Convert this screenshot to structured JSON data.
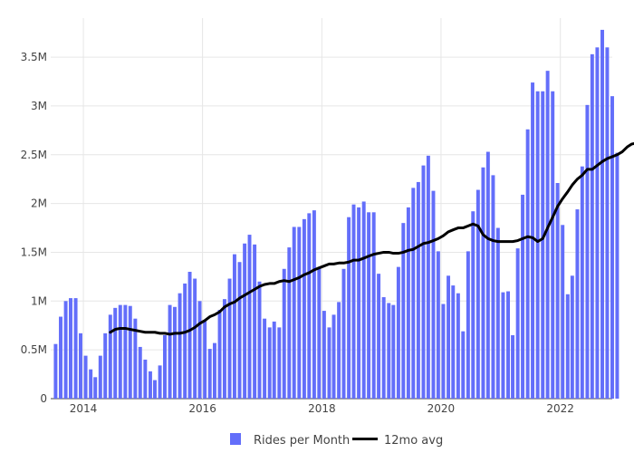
{
  "chart_data": {
    "type": "bar",
    "title": "",
    "xlabel": "",
    "ylabel": "",
    "x_start": "2013-07",
    "x_range": [
      "2013-06-15",
      "2022-11-15"
    ],
    "ylim": [
      0,
      3900000
    ],
    "grid": true,
    "legend_placement": "bottom-center",
    "y_ticks": [
      0,
      500000,
      1000000,
      1500000,
      2000000,
      2500000,
      3000000,
      3500000
    ],
    "y_tick_labels": [
      "0",
      "0.5M",
      "1M",
      "1.5M",
      "2M",
      "2.5M",
      "3M",
      "3.5M"
    ],
    "x_ticks": [
      "2014-01-01",
      "2016-01-01",
      "2018-01-01",
      "2020-01-01",
      "2022-01-01"
    ],
    "x_tick_labels": [
      "2014",
      "2016",
      "2018",
      "2020",
      "2022"
    ],
    "series": [
      {
        "name": "Rides per Month",
        "type": "bar",
        "color": "#636efa",
        "values": [
          560000,
          840000,
          1000000,
          1030000,
          1030000,
          670000,
          440000,
          300000,
          220000,
          440000,
          670000,
          860000,
          930000,
          960000,
          960000,
          950000,
          820000,
          530000,
          400000,
          280000,
          190000,
          340000,
          650000,
          960000,
          940000,
          1080000,
          1180000,
          1300000,
          1230000,
          1000000,
          800000,
          510000,
          570000,
          910000,
          1020000,
          1230000,
          1480000,
          1400000,
          1590000,
          1680000,
          1580000,
          1200000,
          820000,
          730000,
          790000,
          730000,
          1330000,
          1550000,
          1760000,
          1760000,
          1840000,
          1900000,
          1930000,
          1340000,
          900000,
          730000,
          860000,
          990000,
          1330000,
          1860000,
          1990000,
          1960000,
          2020000,
          1910000,
          1910000,
          1280000,
          1040000,
          980000,
          960000,
          1350000,
          1800000,
          1960000,
          2160000,
          2220000,
          2390000,
          2490000,
          2130000,
          1510000,
          970000,
          1260000,
          1160000,
          1080000,
          690000,
          1510000,
          1920000,
          2140000,
          2370000,
          2530000,
          2290000,
          1750000,
          1090000,
          1100000,
          650000,
          1540000,
          2090000,
          2760000,
          3240000,
          3150000,
          3150000,
          3360000,
          3150000,
          2210000,
          1780000,
          1070000,
          1260000,
          1940000,
          2380000,
          3010000,
          3530000,
          3600000,
          3780000,
          3600000,
          3100000,
          2520000
        ]
      },
      {
        "name": "12mo avg",
        "type": "line",
        "color": "#000000",
        "start": "2014-06",
        "values": [
          680000,
          710000,
          720000,
          720000,
          710000,
          700000,
          690000,
          680000,
          680000,
          680000,
          670000,
          670000,
          660000,
          670000,
          670000,
          680000,
          700000,
          730000,
          770000,
          800000,
          840000,
          860000,
          890000,
          940000,
          970000,
          990000,
          1030000,
          1060000,
          1090000,
          1120000,
          1150000,
          1170000,
          1180000,
          1180000,
          1200000,
          1210000,
          1200000,
          1220000,
          1240000,
          1270000,
          1290000,
          1320000,
          1340000,
          1360000,
          1380000,
          1380000,
          1390000,
          1390000,
          1400000,
          1420000,
          1420000,
          1440000,
          1460000,
          1480000,
          1490000,
          1500000,
          1500000,
          1490000,
          1490000,
          1500000,
          1520000,
          1530000,
          1560000,
          1590000,
          1600000,
          1620000,
          1640000,
          1670000,
          1710000,
          1730000,
          1750000,
          1750000,
          1770000,
          1790000,
          1770000,
          1680000,
          1640000,
          1620000,
          1610000,
          1610000,
          1610000,
          1610000,
          1620000,
          1640000,
          1660000,
          1650000,
          1610000,
          1640000,
          1750000,
          1860000,
          1970000,
          2050000,
          2120000,
          2190000,
          2250000,
          2290000,
          2350000,
          2350000,
          2390000,
          2430000,
          2460000,
          2480000,
          2500000,
          2530000,
          2580000,
          2610000,
          2620000,
          2630000
        ]
      }
    ]
  }
}
